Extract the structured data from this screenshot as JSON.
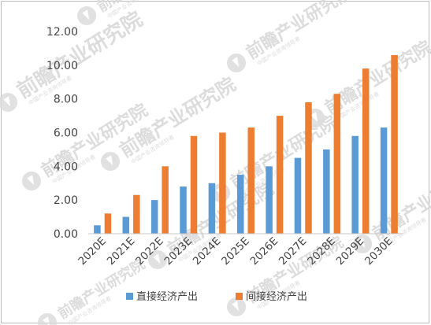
{
  "chart_data": {
    "type": "bar",
    "title": "",
    "xlabel": "",
    "ylabel": "",
    "ylim": [
      0,
      12
    ],
    "yticks": [
      "0.00",
      "2.00",
      "4.00",
      "6.00",
      "8.00",
      "10.00",
      "12.00"
    ],
    "grid": false,
    "legend_position": "bottom",
    "categories": [
      "2020E",
      "2021E",
      "2022E",
      "2023E",
      "2024E",
      "2025E",
      "2026E",
      "2027E",
      "2028E",
      "2029E",
      "2030E"
    ],
    "series": [
      {
        "name": "直接经济产出",
        "color": "#5b9bd5",
        "values": [
          0.5,
          1.0,
          2.0,
          2.8,
          3.0,
          3.5,
          4.0,
          4.5,
          5.0,
          5.8,
          6.3
        ]
      },
      {
        "name": "间接经济产出",
        "color": "#ed7d31",
        "values": [
          1.2,
          2.3,
          4.0,
          5.8,
          6.0,
          6.3,
          7.0,
          7.8,
          8.3,
          9.8,
          10.6
        ]
      }
    ]
  },
  "watermark": {
    "brand": "前瞻产业研究院",
    "slogan": "中国产业咨询领导者",
    "logo_icon": "qianzhan-logo-icon"
  }
}
